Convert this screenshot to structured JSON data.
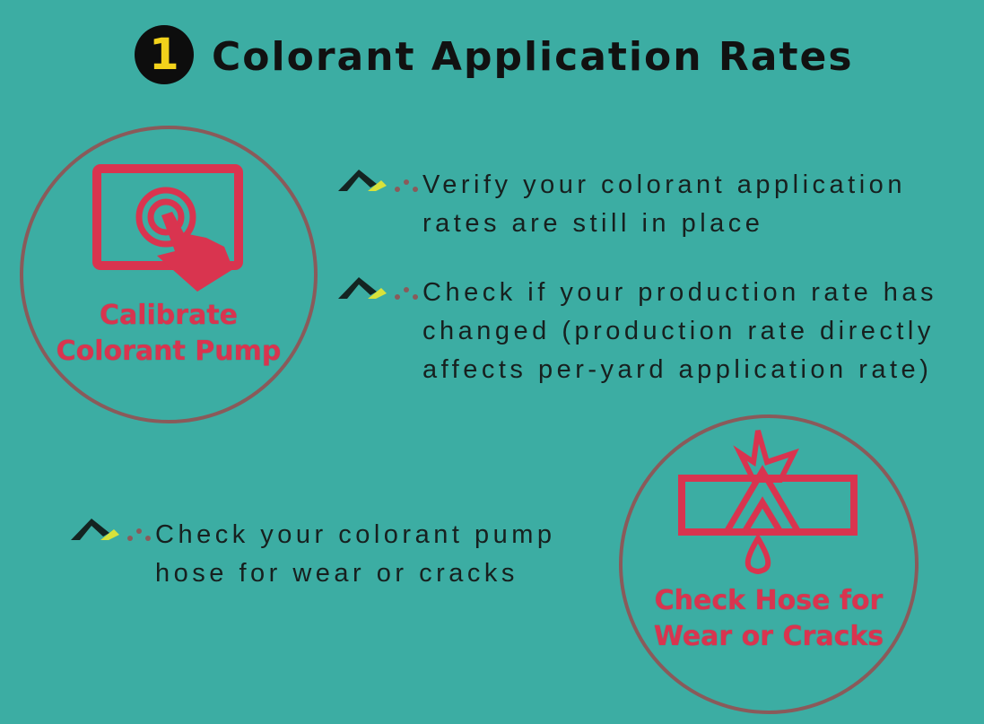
{
  "header": {
    "number": "1",
    "title": "Colorant Application Rates"
  },
  "left_badge": {
    "label_line1": "Calibrate",
    "label_line2": "Colorant Pump",
    "icon": "touchscreen-hand-icon"
  },
  "right_badge": {
    "label_line1": "Check Hose for",
    "label_line2": "Wear or Cracks",
    "icon": "broken-hose-drip-icon"
  },
  "bullets": [
    {
      "line1": "Verify your colorant application",
      "line2": "rates are still in place"
    },
    {
      "line1": "Check if your production rate has",
      "line2": "changed (production rate directly",
      "line3": "affects per-yard application rate)"
    },
    {
      "line1": "Check your colorant pump",
      "line2": "hose for wear or cracks"
    }
  ],
  "colors": {
    "background": "#3cada3",
    "accent_red": "#d9344f",
    "number_yellow": "#f2d21b",
    "text": "#17201f"
  }
}
